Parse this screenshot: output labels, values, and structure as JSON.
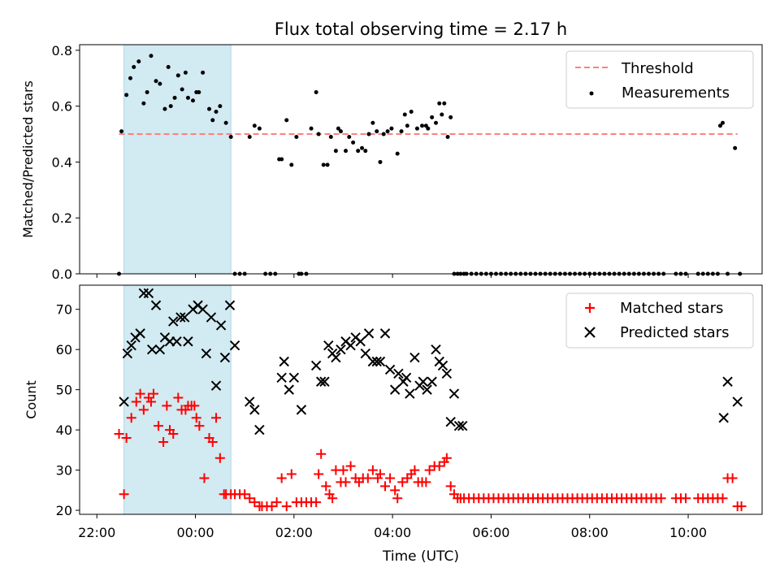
{
  "chart_data": [
    {
      "type": "scatter",
      "title": "Flux total observing time = 2.17 h",
      "xlabel": "",
      "ylabel": "Matched/Predicted stars",
      "ylim": [
        0,
        0.82
      ],
      "yticks": [
        0.0,
        0.2,
        0.4,
        0.6,
        0.8
      ],
      "ytick_labels": [
        "0.0",
        "0.2",
        "0.4",
        "0.6",
        "0.8"
      ],
      "xlim": [
        -2.35,
        11.5
      ],
      "shaded_span": [
        -1.45,
        0.72
      ],
      "shaded_color": "#add8e6",
      "legend_position": "upper right",
      "series": [
        {
          "name": "Threshold",
          "kind": "dashed-line",
          "color": "#ff7f7f",
          "x": [
            -1.55,
            11.0
          ],
          "y": [
            0.5,
            0.5
          ]
        },
        {
          "name": "Measurements",
          "kind": "points",
          "color": "#000000",
          "x": [
            -1.55,
            -1.5,
            -1.4,
            -1.32,
            -1.25,
            -1.15,
            -1.05,
            -0.98,
            -0.9,
            -0.8,
            -0.72,
            -0.62,
            -0.55,
            -0.5,
            -0.42,
            -0.35,
            -0.27,
            -0.2,
            -0.15,
            -0.05,
            0.02,
            0.07,
            0.15,
            0.28,
            0.35,
            0.42,
            0.5,
            0.62,
            0.72,
            0.8,
            0.9,
            1.0,
            1.1,
            1.2,
            1.3,
            1.42,
            1.52,
            1.62,
            1.7,
            1.75,
            1.85,
            1.95,
            2.05,
            2.1,
            2.15,
            2.25,
            2.35,
            2.45,
            2.5,
            2.6,
            2.68,
            2.75,
            2.85,
            2.9,
            2.95,
            3.05,
            3.12,
            3.2,
            3.3,
            3.38,
            3.45,
            3.52,
            3.6,
            3.68,
            3.75,
            3.82,
            3.9,
            3.98,
            4.1,
            4.18,
            4.25,
            4.3,
            4.38,
            4.5,
            4.6,
            4.68,
            4.72,
            4.8,
            4.88,
            4.95,
            5.0,
            5.05,
            5.12,
            5.18,
            5.25,
            5.32,
            5.38,
            5.45,
            5.5,
            5.6,
            5.7,
            5.8,
            5.9,
            6.0,
            6.1,
            6.2,
            6.3,
            6.4,
            6.5,
            6.6,
            6.7,
            6.8,
            6.9,
            7.0,
            7.1,
            7.2,
            7.3,
            7.4,
            7.5,
            7.6,
            7.7,
            7.8,
            7.9,
            8.0,
            8.1,
            8.2,
            8.3,
            8.4,
            8.5,
            8.6,
            8.7,
            8.8,
            8.9,
            9.0,
            9.1,
            9.2,
            9.3,
            9.4,
            9.5,
            9.75,
            9.85,
            9.95,
            10.2,
            10.3,
            10.4,
            10.5,
            10.6,
            10.65,
            10.7,
            10.8,
            10.95,
            11.05
          ],
          "y": [
            0.0,
            0.51,
            0.64,
            0.7,
            0.74,
            0.76,
            0.61,
            0.65,
            0.78,
            0.69,
            0.68,
            0.59,
            0.74,
            0.6,
            0.63,
            0.71,
            0.66,
            0.72,
            0.63,
            0.62,
            0.65,
            0.65,
            0.72,
            0.59,
            0.55,
            0.58,
            0.6,
            0.54,
            0.49,
            0.0,
            0.0,
            0.0,
            0.49,
            0.53,
            0.52,
            0.0,
            0.0,
            0.0,
            0.41,
            0.41,
            0.55,
            0.39,
            0.49,
            0.0,
            0.0,
            0.0,
            0.52,
            0.65,
            0.5,
            0.39,
            0.39,
            0.49,
            0.44,
            0.52,
            0.51,
            0.44,
            0.49,
            0.47,
            0.44,
            0.45,
            0.44,
            0.5,
            0.54,
            0.51,
            0.4,
            0.5,
            0.51,
            0.52,
            0.43,
            0.51,
            0.57,
            0.53,
            0.58,
            0.52,
            0.53,
            0.53,
            0.52,
            0.56,
            0.54,
            0.61,
            0.57,
            0.61,
            0.49,
            0.56,
            0.0,
            0.0,
            0.0,
            0.0,
            0.0,
            0.0,
            0.0,
            0.0,
            0.0,
            0.0,
            0.0,
            0.0,
            0.0,
            0.0,
            0.0,
            0.0,
            0.0,
            0.0,
            0.0,
            0.0,
            0.0,
            0.0,
            0.0,
            0.0,
            0.0,
            0.0,
            0.0,
            0.0,
            0.0,
            0.0,
            0.0,
            0.0,
            0.0,
            0.0,
            0.0,
            0.0,
            0.0,
            0.0,
            0.0,
            0.0,
            0.0,
            0.0,
            0.0,
            0.0,
            0.0,
            0.0,
            0.0,
            0.0,
            0.0,
            0.0,
            0.0,
            0.0,
            0.0,
            0.53,
            0.54,
            0.0,
            0.45,
            0.0
          ]
        }
      ]
    },
    {
      "type": "scatter",
      "title": "",
      "xlabel": "Time (UTC)",
      "ylabel": "Count",
      "ylim": [
        19,
        76
      ],
      "yticks": [
        20,
        30,
        40,
        50,
        60,
        70
      ],
      "ytick_labels": [
        "20",
        "30",
        "40",
        "50",
        "60",
        "70"
      ],
      "xlim": [
        -2.35,
        11.5
      ],
      "xticks": [
        -2,
        0,
        2,
        4,
        6,
        8,
        10
      ],
      "xtick_labels": [
        "22:00",
        "00:00",
        "02:00",
        "04:00",
        "06:00",
        "08:00",
        "10:00"
      ],
      "shaded_span": [
        -1.45,
        0.72
      ],
      "shaded_color": "#add8e6",
      "legend_position": "upper right",
      "series": [
        {
          "name": "Matched stars",
          "marker": "+",
          "color": "#ff0000",
          "x": [
            -1.55,
            -1.45,
            -1.4,
            -1.3,
            -1.2,
            -1.12,
            -1.05,
            -0.95,
            -0.9,
            -0.85,
            -0.75,
            -0.65,
            -0.58,
            -0.52,
            -0.45,
            -0.35,
            -0.28,
            -0.2,
            -0.15,
            -0.08,
            -0.02,
            0.02,
            0.08,
            0.18,
            0.28,
            0.35,
            0.42,
            0.5,
            0.58,
            0.62,
            0.72,
            0.8,
            0.9,
            1.0,
            1.1,
            1.2,
            1.3,
            1.35,
            1.45,
            1.55,
            1.65,
            1.75,
            1.85,
            1.95,
            2.05,
            2.15,
            2.25,
            2.35,
            2.45,
            2.5,
            2.55,
            2.65,
            2.72,
            2.78,
            2.85,
            2.95,
            3.0,
            3.05,
            3.15,
            3.25,
            3.32,
            3.4,
            3.5,
            3.6,
            3.7,
            3.75,
            3.85,
            3.95,
            4.05,
            4.1,
            4.2,
            4.3,
            4.38,
            4.45,
            4.52,
            4.6,
            4.68,
            4.75,
            4.85,
            4.95,
            5.05,
            5.1,
            5.18,
            5.25,
            5.32,
            5.38,
            5.45,
            5.55,
            5.65,
            5.75,
            5.85,
            5.95,
            6.05,
            6.15,
            6.25,
            6.35,
            6.45,
            6.55,
            6.65,
            6.75,
            6.85,
            6.95,
            7.05,
            7.15,
            7.25,
            7.35,
            7.45,
            7.55,
            7.65,
            7.75,
            7.85,
            7.95,
            8.05,
            8.15,
            8.25,
            8.35,
            8.45,
            8.55,
            8.65,
            8.75,
            8.85,
            8.95,
            9.05,
            9.15,
            9.25,
            9.35,
            9.45,
            9.75,
            9.85,
            9.95,
            10.2,
            10.3,
            10.4,
            10.5,
            10.6,
            10.7,
            10.8,
            10.9,
            11.0,
            11.08
          ],
          "y": [
            39,
            24,
            38,
            43,
            47,
            49,
            45,
            48,
            47,
            49,
            41,
            37,
            46,
            40,
            39,
            48,
            45,
            45,
            46,
            46,
            46,
            43,
            41,
            28,
            38,
            37,
            43,
            33,
            24,
            24,
            24,
            24,
            24,
            24,
            23,
            22,
            21,
            21,
            21,
            21,
            22,
            28,
            21,
            29,
            22,
            22,
            22,
            22,
            22,
            29,
            34,
            26,
            24,
            23,
            30,
            27,
            30,
            27,
            31,
            28,
            27,
            28,
            28,
            30,
            28,
            29,
            26,
            28,
            25,
            23,
            27,
            28,
            29,
            30,
            27,
            27,
            27,
            30,
            31,
            31,
            32,
            33,
            26,
            24,
            23,
            23,
            23,
            23,
            23,
            23,
            23,
            23,
            23,
            23,
            23,
            23,
            23,
            23,
            23,
            23,
            23,
            23,
            23,
            23,
            23,
            23,
            23,
            23,
            23,
            23,
            23,
            23,
            23,
            23,
            23,
            23,
            23,
            23,
            23,
            23,
            23,
            23,
            23,
            23,
            23,
            23,
            23,
            23,
            23,
            23,
            23,
            23,
            23,
            23,
            23,
            23,
            28,
            28,
            21,
            21
          ]
        },
        {
          "name": "Predicted stars",
          "marker": "x",
          "color": "#000000",
          "x": [
            -1.45,
            -1.38,
            -1.3,
            -1.22,
            -1.12,
            -1.05,
            -0.95,
            -0.88,
            -0.8,
            -0.72,
            -0.62,
            -0.52,
            -0.45,
            -0.38,
            -0.3,
            -0.22,
            -0.15,
            -0.05,
            0.05,
            0.15,
            0.22,
            0.32,
            0.42,
            0.52,
            0.6,
            0.7,
            0.8,
            1.1,
            1.2,
            1.3,
            1.75,
            1.8,
            1.9,
            2.0,
            2.15,
            2.45,
            2.55,
            2.62,
            2.7,
            2.78,
            2.85,
            2.95,
            3.05,
            3.15,
            3.25,
            3.35,
            3.45,
            3.52,
            3.6,
            3.68,
            3.75,
            3.85,
            3.95,
            4.05,
            4.12,
            4.22,
            4.28,
            4.35,
            4.45,
            4.55,
            4.62,
            4.7,
            4.8,
            4.88,
            4.95,
            5.02,
            5.1,
            5.18,
            5.25,
            5.35,
            5.42,
            10.72,
            10.8,
            11.0
          ],
          "y": [
            47,
            59,
            61,
            63,
            64,
            74,
            74,
            60,
            71,
            60,
            63,
            62,
            67,
            62,
            68,
            68,
            62,
            70,
            71,
            70,
            59,
            68,
            51,
            66,
            58,
            71,
            61,
            47,
            45,
            40,
            53,
            57,
            50,
            53,
            45,
            56,
            52,
            52,
            61,
            59,
            58,
            60,
            62,
            61,
            63,
            62,
            59,
            64,
            57,
            57,
            57,
            64,
            55,
            50,
            54,
            52,
            53,
            49,
            58,
            51,
            52,
            50,
            52,
            60,
            57,
            56,
            54,
            42,
            49,
            41,
            41,
            43,
            52,
            47
          ]
        }
      ]
    }
  ]
}
